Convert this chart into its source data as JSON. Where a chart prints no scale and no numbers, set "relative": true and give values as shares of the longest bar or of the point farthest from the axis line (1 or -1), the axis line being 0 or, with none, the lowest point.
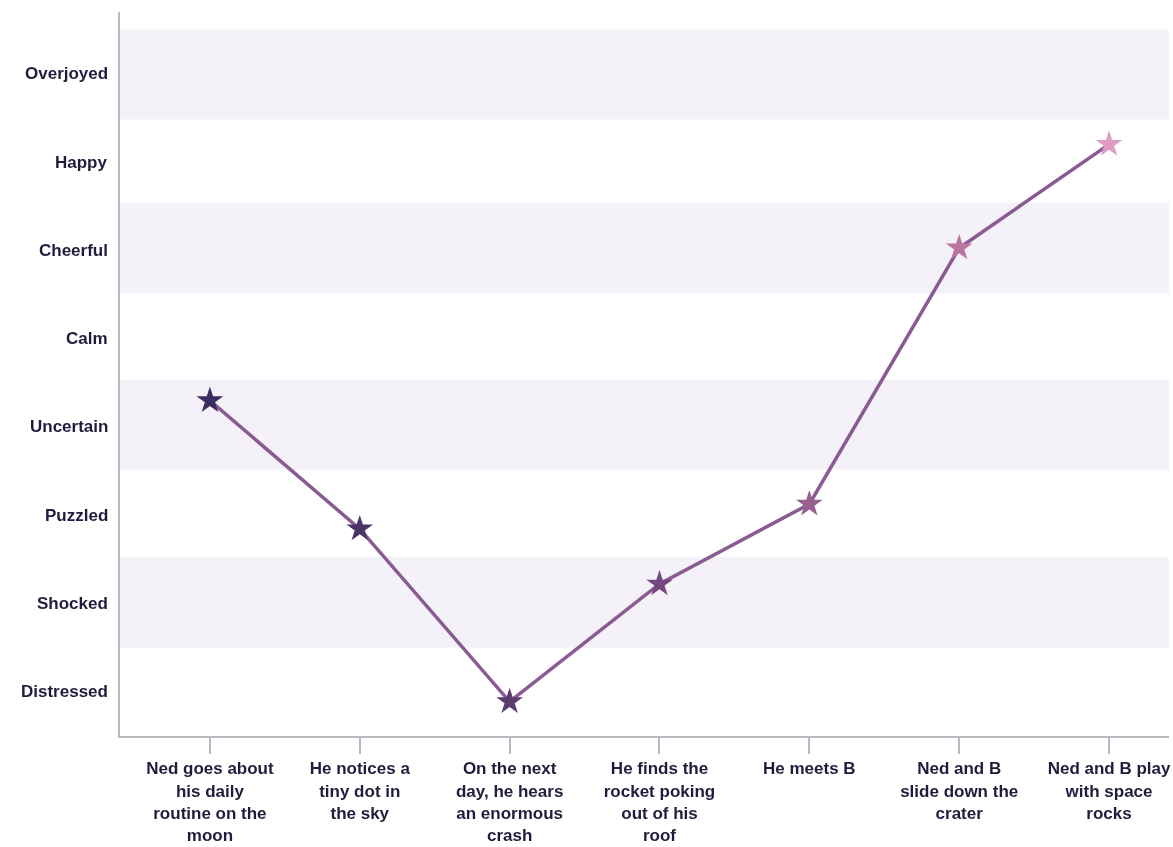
{
  "chart_data": {
    "type": "line",
    "relative": true,
    "categories": [
      "Ned goes about his daily routine on the moon",
      "He notices a tiny dot in the sky",
      "On the next day, he hears an enormous crash",
      "He finds the rocket poking out of his roof",
      "He meets B",
      "Ned and B slide down the crater",
      "Ned and B play with space rocks"
    ],
    "series": [
      {
        "color": "#8a5a92",
        "colors": [
          "#3b2c62",
          "#4a3468",
          "#5b3c70",
          "#74497d",
          "#96608f",
          "#b9779f",
          "#e09cc4"
        ],
        "values": [
          0.567,
          0.35,
          0.058,
          0.257,
          0.392,
          0.825,
          1
        ]
      }
    ],
    "annotations": [
      "Overjoyed",
      "Happy",
      "Cheerful",
      "Calm",
      "Uncertain",
      "Puzzled",
      "Shocked",
      "Distressed"
    ],
    "bands": [
      {
        "axis": "y",
        "from": 1.042,
        "to": 1.194,
        "color": "#f4f1f8"
      },
      {
        "axis": "y",
        "from": 0.748,
        "to": 0.902,
        "color": "#f4f1f8"
      },
      {
        "axis": "y",
        "from": 0.45,
        "to": 0.602,
        "color": "#f4f1f8"
      },
      {
        "axis": "y",
        "from": 0.149,
        "to": 0.303,
        "color": "#f4f1f8"
      }
    ],
    "marker": "star",
    "line_style": "solid",
    "grid": false
  }
}
